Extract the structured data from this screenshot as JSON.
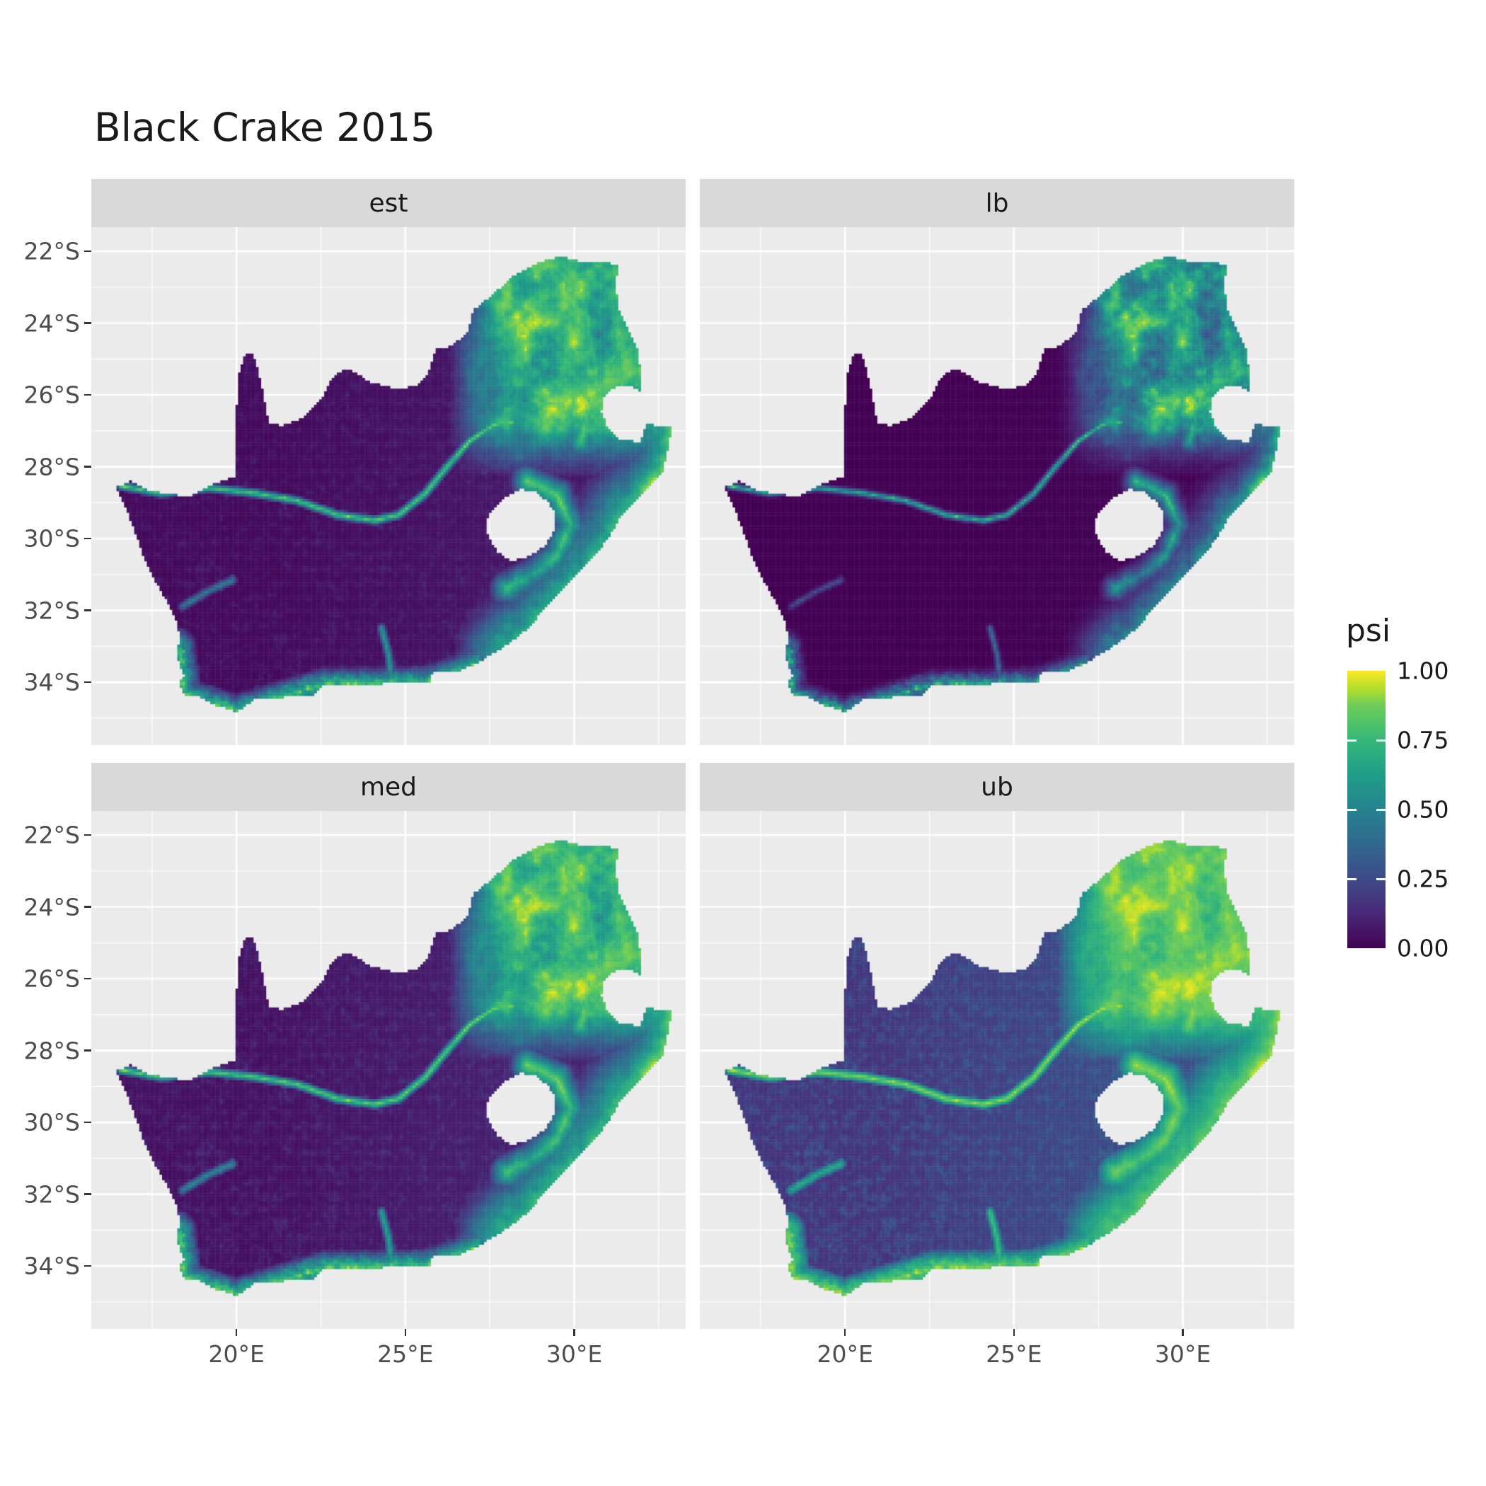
{
  "title": "Black Crake 2015",
  "legend": {
    "title": "psi",
    "labels": [
      "1.00",
      "0.75",
      "0.50",
      "0.25",
      "0.00"
    ],
    "values": [
      1.0,
      0.75,
      0.5,
      0.25,
      0.0
    ]
  },
  "facets": [
    {
      "label": "est",
      "gamma": 1.0
    },
    {
      "label": "lb",
      "gamma": 1.7
    },
    {
      "label": "med",
      "gamma": 0.85
    },
    {
      "label": "ub",
      "gamma": 0.5
    }
  ],
  "axes": {
    "x": {
      "domain": [
        15.7,
        33.3
      ],
      "ticks": [
        {
          "label": "20°E",
          "value": 20
        },
        {
          "label": "25°E",
          "value": 25
        },
        {
          "label": "30°E",
          "value": 30
        }
      ]
    },
    "y": {
      "domain": [
        -35.75,
        -21.33
      ],
      "ticks": [
        {
          "label": "22°S",
          "value": -22
        },
        {
          "label": "24°S",
          "value": -24
        },
        {
          "label": "26°S",
          "value": -26
        },
        {
          "label": "28°S",
          "value": -28
        },
        {
          "label": "30°S",
          "value": -30
        },
        {
          "label": "32°S",
          "value": -32
        },
        {
          "label": "34°S",
          "value": -34
        }
      ]
    }
  },
  "theme": {
    "background": "#FFFFFF",
    "panel_bg": "#EBEBEB",
    "strip_bg": "#D9D9D9",
    "grid_color": "#FFFFFF",
    "axis_text_color": "#4D4D4D",
    "strip_text_color": "#1A1A1A",
    "title_color": "#1A1A1A"
  },
  "chart_data": {
    "type": "heatmap",
    "title": "Black Crake 2015",
    "facets": [
      "est",
      "lb",
      "med",
      "ub"
    ],
    "legend_title": "psi",
    "value_name": "psi",
    "value_range": [
      0,
      1
    ],
    "legend_breaks": [
      0,
      0.25,
      0.5,
      0.75,
      1.0
    ],
    "palette": "viridis",
    "viridis_stops": [
      {
        "t": 0,
        "color": "#440154"
      },
      {
        "t": 0.125,
        "color": "#482878"
      },
      {
        "t": 0.25,
        "color": "#3E4A89"
      },
      {
        "t": 0.375,
        "color": "#31688E"
      },
      {
        "t": 0.5,
        "color": "#26828E"
      },
      {
        "t": 0.625,
        "color": "#1F9E89"
      },
      {
        "t": 0.75,
        "color": "#35B779"
      },
      {
        "t": 0.875,
        "color": "#6DCD59"
      },
      {
        "t": 0.9375,
        "color": "#B4DE2C"
      },
      {
        "t": 1,
        "color": "#FDE725"
      }
    ],
    "x_domain": [
      15.7,
      33.3
    ],
    "y_domain": [
      -35.75,
      -21.33
    ],
    "cell_size_deg": 0.075,
    "facet_gamma": [
      1.0,
      1.7,
      0.85,
      0.5
    ],
    "outline": [
      [
        16.45,
        -28.58
      ],
      [
        16.77,
        -29.25
      ],
      [
        17.05,
        -29.95
      ],
      [
        17.28,
        -30.6
      ],
      [
        17.6,
        -31.2
      ],
      [
        17.95,
        -31.75
      ],
      [
        18.25,
        -32.35
      ],
      [
        18.33,
        -32.85
      ],
      [
        18.2,
        -33.1
      ],
      [
        18.33,
        -33.5
      ],
      [
        18.45,
        -33.85
      ],
      [
        18.3,
        -34.05
      ],
      [
        18.48,
        -34.35
      ],
      [
        18.85,
        -34.38
      ],
      [
        19.3,
        -34.62
      ],
      [
        20.0,
        -34.82
      ],
      [
        20.6,
        -34.45
      ],
      [
        21.3,
        -34.42
      ],
      [
        22.2,
        -34.4
      ],
      [
        22.6,
        -34.05
      ],
      [
        23.4,
        -34.1
      ],
      [
        24.2,
        -34.05
      ],
      [
        25.05,
        -34.0
      ],
      [
        25.7,
        -34.03
      ],
      [
        25.8,
        -33.72
      ],
      [
        26.5,
        -33.72
      ],
      [
        27.15,
        -33.45
      ],
      [
        27.95,
        -33.0
      ],
      [
        28.65,
        -32.5
      ],
      [
        29.2,
        -31.85
      ],
      [
        29.9,
        -31.2
      ],
      [
        30.65,
        -30.45
      ],
      [
        31.1,
        -29.85
      ],
      [
        31.4,
        -29.35
      ],
      [
        32.05,
        -28.75
      ],
      [
        32.6,
        -28.2
      ],
      [
        32.75,
        -27.6
      ],
      [
        32.9,
        -26.85
      ],
      [
        32.12,
        -26.84
      ],
      [
        31.97,
        -27.32
      ],
      [
        31.3,
        -27.24
      ],
      [
        30.97,
        -26.92
      ],
      [
        30.8,
        -26.45
      ],
      [
        30.9,
        -26.0
      ],
      [
        31.15,
        -25.83
      ],
      [
        31.45,
        -25.72
      ],
      [
        31.9,
        -25.83
      ],
      [
        31.98,
        -25.96
      ],
      [
        31.98,
        -25.45
      ],
      [
        31.88,
        -24.75
      ],
      [
        31.55,
        -24.1
      ],
      [
        31.32,
        -23.6
      ],
      [
        31.22,
        -22.9
      ],
      [
        31.3,
        -22.42
      ],
      [
        30.9,
        -22.3
      ],
      [
        30.3,
        -22.34
      ],
      [
        29.7,
        -22.15
      ],
      [
        29.35,
        -22.2
      ],
      [
        28.95,
        -22.32
      ],
      [
        28.2,
        -22.7
      ],
      [
        27.6,
        -23.2
      ],
      [
        27.0,
        -23.65
      ],
      [
        26.85,
        -24.25
      ],
      [
        26.4,
        -24.63
      ],
      [
        25.9,
        -24.75
      ],
      [
        25.65,
        -25.48
      ],
      [
        25.35,
        -25.77
      ],
      [
        24.7,
        -25.82
      ],
      [
        24.0,
        -25.65
      ],
      [
        23.25,
        -25.27
      ],
      [
        22.85,
        -25.5
      ],
      [
        22.6,
        -26.0
      ],
      [
        22.0,
        -26.65
      ],
      [
        21.4,
        -26.85
      ],
      [
        20.97,
        -26.83
      ],
      [
        20.85,
        -26.25
      ],
      [
        20.68,
        -25.47
      ],
      [
        20.5,
        -24.85
      ],
      [
        20.28,
        -24.82
      ],
      [
        20.05,
        -25.5
      ],
      [
        20.0,
        -26.5
      ],
      [
        19.99,
        -27.5
      ],
      [
        19.99,
        -28.25
      ],
      [
        19.3,
        -28.5
      ],
      [
        18.6,
        -28.85
      ],
      [
        17.95,
        -28.75
      ],
      [
        17.4,
        -28.68
      ],
      [
        16.9,
        -28.4
      ]
    ],
    "hole": [
      [
        27.55,
        -29.2
      ],
      [
        27.9,
        -28.9
      ],
      [
        28.4,
        -28.62
      ],
      [
        28.85,
        -28.7
      ],
      [
        29.25,
        -29.0
      ],
      [
        29.45,
        -29.35
      ],
      [
        29.42,
        -29.75
      ],
      [
        29.15,
        -30.2
      ],
      [
        28.7,
        -30.5
      ],
      [
        28.15,
        -30.63
      ],
      [
        27.75,
        -30.4
      ],
      [
        27.45,
        -29.95
      ],
      [
        27.4,
        -29.55
      ]
    ],
    "features": {
      "east_coast": [
        [
          27.9,
          -33.05
        ],
        [
          28.65,
          -32.5
        ],
        [
          29.9,
          -31.2
        ],
        [
          30.65,
          -30.45
        ],
        [
          31.4,
          -29.35
        ],
        [
          32.6,
          -28.2
        ],
        [
          32.9,
          -26.9
        ],
        [
          32.05,
          -25.8
        ],
        [
          31.9,
          -24.6
        ],
        [
          31.3,
          -22.9
        ]
      ],
      "south_coast": [
        [
          18.48,
          -34.33
        ],
        [
          19.3,
          -34.6
        ],
        [
          20.0,
          -34.8
        ],
        [
          21.3,
          -34.42
        ],
        [
          22.6,
          -34.05
        ],
        [
          24.2,
          -34.05
        ],
        [
          25.7,
          -34.0
        ],
        [
          27.1,
          -33.5
        ]
      ],
      "west_coast_cape": [
        [
          18.3,
          -33.0
        ],
        [
          18.45,
          -34.2
        ]
      ],
      "drakensberg": [
        [
          28.6,
          -28.4
        ],
        [
          29.5,
          -28.8
        ],
        [
          29.9,
          -29.6
        ],
        [
          29.5,
          -30.5
        ],
        [
          28.8,
          -31.0
        ],
        [
          28.0,
          -31.4
        ]
      ],
      "escarpment_ne": [
        [
          28.3,
          -22.75
        ],
        [
          29.4,
          -22.4
        ],
        [
          30.3,
          -23.3
        ],
        [
          30.5,
          -24.5
        ],
        [
          30.7,
          -25.6
        ],
        [
          30.4,
          -26.5
        ],
        [
          30.2,
          -27.3
        ]
      ],
      "rivers": [
        [
          [
            16.6,
            -28.55
          ],
          [
            17.8,
            -28.75
          ],
          [
            19.2,
            -28.6
          ],
          [
            20.6,
            -28.75
          ],
          [
            21.8,
            -28.95
          ],
          [
            23.0,
            -29.35
          ],
          [
            24.1,
            -29.5
          ],
          [
            24.8,
            -29.35
          ]
        ],
        [
          [
            24.8,
            -29.35
          ],
          [
            25.6,
            -28.75
          ],
          [
            26.2,
            -28.05
          ],
          [
            26.9,
            -27.3
          ],
          [
            27.6,
            -26.85
          ],
          [
            28.2,
            -26.75
          ]
        ],
        [
          [
            24.6,
            -34.0
          ],
          [
            24.5,
            -33.2
          ],
          [
            24.3,
            -32.5
          ]
        ],
        [
          [
            18.4,
            -31.9
          ],
          [
            19.1,
            -31.5
          ],
          [
            19.9,
            -31.15
          ]
        ]
      ]
    }
  }
}
